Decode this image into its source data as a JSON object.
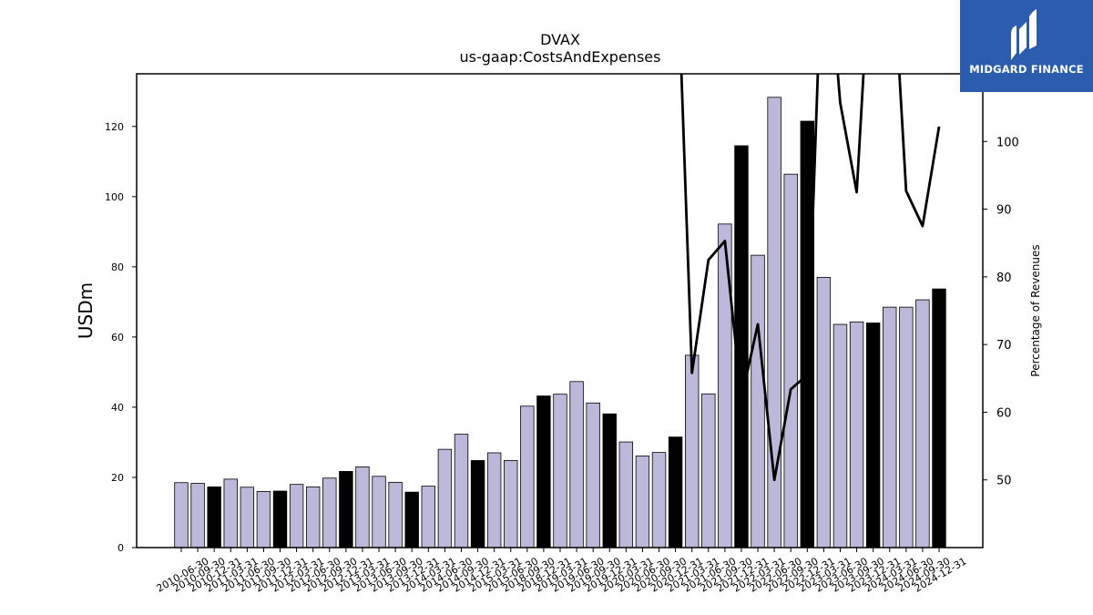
{
  "chart_data": {
    "type": "bar",
    "title": "DVAX",
    "subtitle": "us-gaap:CostsAndExpenses",
    "ylabel": "USDm",
    "y2label": "Percentage of Revenues",
    "ylim": [
      0,
      135
    ],
    "y2lim": [
      40,
      110
    ],
    "yticks": [
      0,
      20,
      40,
      60,
      80,
      100,
      120
    ],
    "y2ticks": [
      50,
      60,
      70,
      80,
      90,
      100
    ],
    "categories": [
      "2010-06-30",
      "2010-09-30",
      "2010-12-31",
      "2011-03-31",
      "2011-06-30",
      "2011-09-30",
      "2011-12-31",
      "2012-03-31",
      "2012-06-30",
      "2012-09-30",
      "2012-12-31",
      "2013-03-31",
      "2013-06-30",
      "2013-09-30",
      "2013-12-31",
      "2014-03-31",
      "2014-06-30",
      "2014-09-30",
      "2014-12-31",
      "2015-03-31",
      "2015-06-30",
      "2018-09-30",
      "2018-12-31",
      "2019-03-31",
      "2019-06-30",
      "2019-09-30",
      "2019-12-31",
      "2020-03-31",
      "2020-06-30",
      "2020-09-30",
      "2020-12-31",
      "2021-03-31",
      "2021-06-30",
      "2021-09-30",
      "2021-12-31",
      "2022-03-31",
      "2022-06-30",
      "2022-09-30",
      "2022-12-31",
      "2023-03-31",
      "2023-06-30",
      "2023-09-30",
      "2023-12-31",
      "2024-03-31",
      "2024-06-30",
      "2024-09-30",
      "2024-12-31"
    ],
    "values": [
      18.5,
      18.3,
      17.3,
      19.5,
      17.2,
      16.0,
      16.1,
      18.0,
      17.3,
      19.8,
      21.7,
      23.0,
      20.3,
      18.6,
      15.8,
      17.5,
      28.0,
      32.3,
      24.8,
      27.0,
      24.8,
      40.3,
      43.2,
      43.7,
      47.3,
      41.2,
      38.1,
      30.1,
      26.1,
      27.1,
      31.5,
      54.8,
      43.8,
      92.2,
      114.5,
      83.3,
      128.3,
      106.4,
      121.5,
      77.0,
      63.6,
      64.3,
      64.0,
      68.5,
      68.5,
      70.6,
      73.7
    ],
    "highlight": [
      false,
      false,
      true,
      false,
      false,
      false,
      true,
      false,
      false,
      false,
      true,
      false,
      false,
      false,
      true,
      false,
      false,
      false,
      true,
      false,
      false,
      false,
      true,
      false,
      false,
      false,
      true,
      false,
      false,
      false,
      true,
      false,
      false,
      false,
      true,
      false,
      false,
      false,
      true,
      false,
      false,
      false,
      true,
      false,
      false,
      false,
      true
    ],
    "pct_of_revenues": [
      null,
      null,
      null,
      null,
      null,
      null,
      null,
      null,
      null,
      null,
      null,
      null,
      null,
      null,
      null,
      null,
      null,
      null,
      null,
      null,
      null,
      null,
      null,
      null,
      null,
      null,
      null,
      null,
      null,
      null,
      135,
      65.8,
      82.5,
      85.3,
      62.0,
      73.0,
      50.0,
      63.4,
      65.5,
      135,
      105.7,
      92.5,
      135,
      135,
      92.7,
      87.5,
      102.2
    ],
    "colors": {
      "bar": "#bcb8d9",
      "highlight_bar": "#000000",
      "line": "#000000"
    },
    "grid": false
  },
  "brand": {
    "name": "MIDGARD FINANCE"
  }
}
